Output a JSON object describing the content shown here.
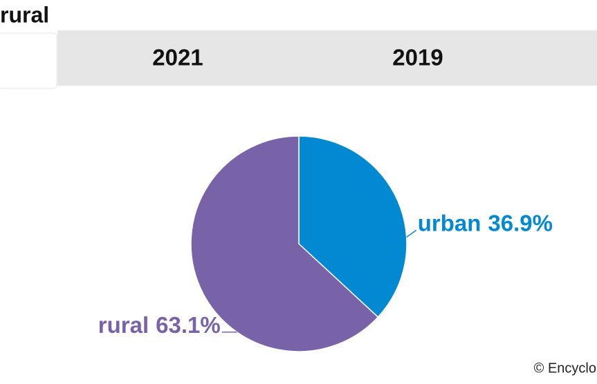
{
  "title": "rural",
  "tabs": [
    "2021",
    "2019"
  ],
  "credit": "© Encyclo",
  "chart_data": {
    "type": "pie",
    "categories": [
      "urban",
      "rural"
    ],
    "values": [
      36.9,
      63.1
    ],
    "value_labels": [
      "36.9%",
      "63.1%"
    ],
    "colors": [
      "#0389d1",
      "#7862a8"
    ]
  }
}
